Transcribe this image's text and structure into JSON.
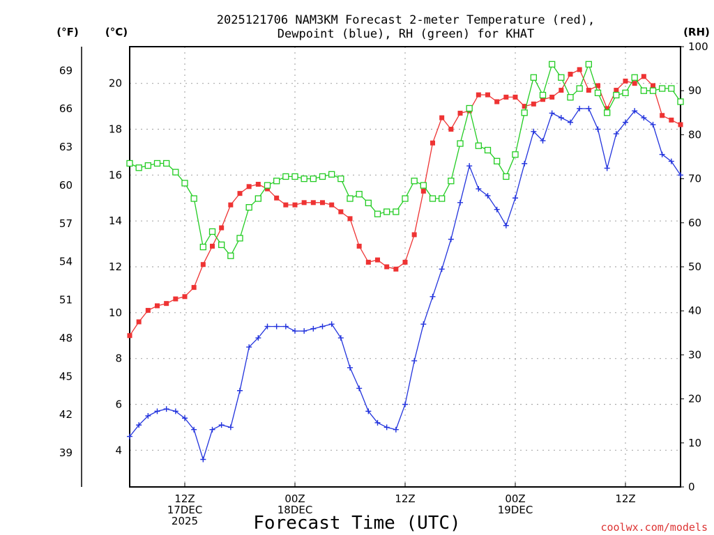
{
  "chart_data": {
    "type": "line",
    "title_line1": "2025121706 NAM3KM Forecast 2-meter Temperature (red),",
    "title_line2": "Dewpoint (blue), RH (green) for KHAT",
    "xlabel": "Forecast Time (UTC)",
    "credit": "coolwx.com/models",
    "unit_f": "(°F)",
    "unit_c": "(°C)",
    "unit_rh": "(RH)",
    "x_hours_range": [
      1,
      61
    ],
    "c_range": [
      2.4,
      21.6
    ],
    "rh_range": [
      0,
      100
    ],
    "f_ticks": [
      "39",
      "42",
      "45",
      "48",
      "51",
      "54",
      "57",
      "60",
      "63",
      "66",
      "69"
    ],
    "c_ticks": [
      "4",
      "6",
      "8",
      "10",
      "12",
      "14",
      "16",
      "18",
      "20"
    ],
    "rh_ticks": [
      "0",
      "10",
      "20",
      "30",
      "40",
      "50",
      "60",
      "70",
      "80",
      "90",
      "100"
    ],
    "x_ticks": [
      {
        "hour": 7,
        "line1": "12Z",
        "line2": "17DEC",
        "line3": "2025"
      },
      {
        "hour": 19,
        "line1": "00Z",
        "line2": "18DEC",
        "line3": ""
      },
      {
        "hour": 31,
        "line1": "12Z",
        "line2": "",
        "line3": ""
      },
      {
        "hour": 43,
        "line1": "00Z",
        "line2": "19DEC",
        "line3": ""
      },
      {
        "hour": 55,
        "line1": "12Z",
        "line2": "",
        "line3": ""
      }
    ],
    "hours": [
      1,
      2,
      3,
      4,
      5,
      6,
      7,
      8,
      9,
      10,
      11,
      12,
      13,
      14,
      15,
      16,
      17,
      18,
      19,
      20,
      21,
      22,
      23,
      24,
      25,
      26,
      27,
      28,
      29,
      30,
      31,
      32,
      33,
      34,
      35,
      36,
      37,
      38,
      39,
      40,
      41,
      42,
      43,
      44,
      45,
      46,
      47,
      48,
      49,
      50,
      51,
      52,
      53,
      54,
      55,
      56,
      57,
      58,
      59,
      60,
      61
    ],
    "series": [
      {
        "name": "Temperature",
        "axis": "celsius",
        "color": "#ee3333",
        "marker": "filled-square",
        "values": [
          9.0,
          9.6,
          10.1,
          10.3,
          10.4,
          10.6,
          10.7,
          11.1,
          12.1,
          12.9,
          13.7,
          14.7,
          15.2,
          15.5,
          15.6,
          15.4,
          15.0,
          14.7,
          14.7,
          14.8,
          14.8,
          14.8,
          14.7,
          14.4,
          14.1,
          12.9,
          12.2,
          12.3,
          12.0,
          11.9,
          12.2,
          13.4,
          15.3,
          17.4,
          18.5,
          18.0,
          18.7,
          18.8,
          19.5,
          19.5,
          19.2,
          19.4,
          19.4,
          19.0,
          19.1,
          19.3,
          19.4,
          19.7,
          20.4,
          20.6,
          19.7,
          19.9,
          18.9,
          19.7,
          20.1,
          20.0,
          20.3,
          19.9,
          18.6,
          18.4,
          18.2
        ]
      },
      {
        "name": "Dewpoint",
        "axis": "celsius",
        "color": "#2233dd",
        "marker": "plus",
        "values": [
          4.6,
          5.1,
          5.5,
          5.7,
          5.8,
          5.7,
          5.4,
          4.9,
          3.6,
          4.9,
          5.1,
          5.0,
          6.6,
          8.5,
          8.9,
          9.4,
          9.4,
          9.4,
          9.2,
          9.2,
          9.3,
          9.4,
          9.5,
          8.9,
          7.6,
          6.7,
          5.7,
          5.2,
          5.0,
          4.9,
          6.0,
          7.9,
          9.5,
          10.7,
          11.9,
          13.2,
          14.8,
          16.4,
          15.4,
          15.1,
          14.5,
          13.8,
          15.0,
          16.5,
          17.9,
          17.5,
          18.7,
          18.5,
          18.3,
          18.9,
          18.9,
          18.0,
          16.3,
          17.8,
          18.3,
          18.8,
          18.5,
          18.2,
          16.9,
          16.6,
          16.0
        ]
      },
      {
        "name": "RH",
        "axis": "rh",
        "color": "#22cc22",
        "marker": "open-square",
        "values": [
          73.5,
          72.5,
          73.0,
          73.5,
          73.5,
          71.5,
          69.0,
          65.5,
          54.5,
          58.0,
          55.0,
          52.5,
          56.5,
          63.5,
          65.5,
          68.5,
          69.5,
          70.5,
          70.5,
          70.0,
          70.0,
          70.5,
          71.0,
          70.0,
          65.5,
          66.5,
          64.5,
          62.0,
          62.5,
          62.5,
          65.5,
          69.5,
          68.5,
          65.5,
          65.5,
          69.5,
          78.0,
          86.0,
          77.5,
          76.5,
          74.0,
          70.5,
          75.5,
          85.0,
          93.0,
          89.0,
          96.0,
          93.0,
          88.5,
          90.5,
          96.0,
          89.5,
          85.0,
          89.0,
          89.5,
          93.0,
          90.0,
          90.0,
          90.5,
          90.5,
          87.5
        ]
      }
    ]
  }
}
